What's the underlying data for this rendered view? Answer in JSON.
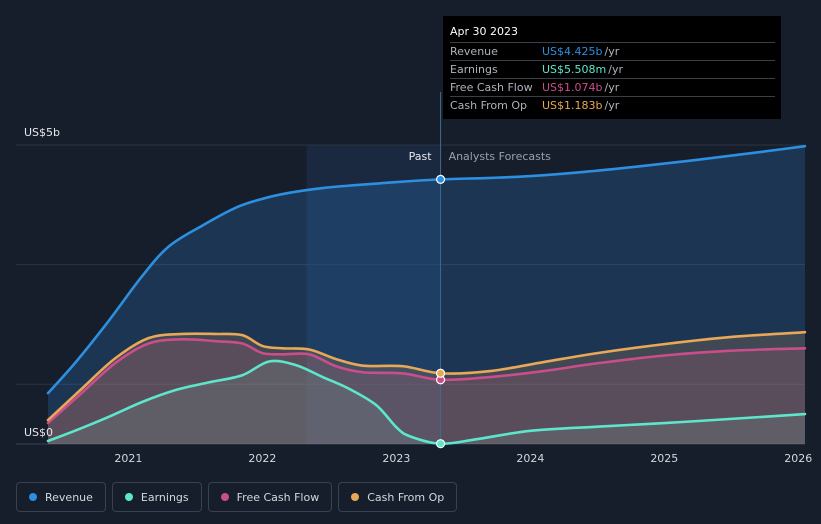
{
  "chart_data": {
    "type": "line",
    "y_top_label": "US$5b",
    "y_bottom_label": "US$0",
    "ylim": [
      0,
      5
    ],
    "xlim": [
      2020.4,
      2026.05
    ],
    "x_ticks": [
      {
        "value": 2021,
        "label": "2021"
      },
      {
        "value": 2022,
        "label": "2022"
      },
      {
        "value": 2023,
        "label": "2023"
      },
      {
        "value": 2024,
        "label": "2024"
      },
      {
        "value": 2025,
        "label": "2025"
      },
      {
        "value": 2026,
        "label": "2026"
      }
    ],
    "past_label": "Past",
    "forecast_label": "Analysts Forecasts",
    "past_region_start": 2022.33,
    "divider": 2023.33,
    "series": [
      {
        "name": "Revenue",
        "color": "#2d8fe0",
        "x": [
          2020.4,
          2020.6,
          2020.85,
          2021.1,
          2021.3,
          2021.55,
          2021.8,
          2022.0,
          2022.2,
          2022.45,
          2022.7,
          2023.0,
          2023.33,
          2023.7,
          2024.0,
          2024.4,
          2024.8,
          2025.2,
          2025.6,
          2026.05
        ],
        "y": [
          0.85,
          1.35,
          2.05,
          2.8,
          3.3,
          3.65,
          3.95,
          4.1,
          4.2,
          4.28,
          4.33,
          4.38,
          4.425,
          4.45,
          4.48,
          4.55,
          4.64,
          4.74,
          4.85,
          4.98
        ]
      },
      {
        "name": "Earnings",
        "color": "#5ee6cc",
        "x": [
          2020.4,
          2020.6,
          2020.85,
          2021.1,
          2021.35,
          2021.6,
          2021.85,
          2022.05,
          2022.25,
          2022.45,
          2022.65,
          2022.85,
          2023.0,
          2023.1,
          2023.33,
          2023.6,
          2024.0,
          2024.5,
          2025.0,
          2025.5,
          2026.05
        ],
        "y": [
          0.05,
          0.22,
          0.45,
          0.7,
          0.9,
          1.03,
          1.15,
          1.38,
          1.32,
          1.12,
          0.92,
          0.65,
          0.28,
          0.13,
          0.0055,
          0.08,
          0.22,
          0.29,
          0.35,
          0.42,
          0.5
        ]
      },
      {
        "name": "Free Cash Flow",
        "color": "#c94e8a",
        "x": [
          2020.4,
          2020.65,
          2020.9,
          2021.15,
          2021.4,
          2021.65,
          2021.85,
          2022.0,
          2022.15,
          2022.35,
          2022.55,
          2022.75,
          2023.05,
          2023.33,
          2023.7,
          2024.1,
          2024.5,
          2025.0,
          2025.5,
          2026.05
        ],
        "y": [
          0.35,
          0.85,
          1.35,
          1.68,
          1.75,
          1.72,
          1.68,
          1.52,
          1.5,
          1.5,
          1.3,
          1.2,
          1.18,
          1.074,
          1.12,
          1.22,
          1.35,
          1.48,
          1.56,
          1.6
        ]
      },
      {
        "name": "Cash From Op",
        "color": "#e8a858",
        "x": [
          2020.4,
          2020.65,
          2020.9,
          2021.15,
          2021.4,
          2021.65,
          2021.85,
          2022.0,
          2022.15,
          2022.35,
          2022.55,
          2022.75,
          2023.05,
          2023.33,
          2023.7,
          2024.1,
          2024.5,
          2025.0,
          2025.5,
          2026.05
        ],
        "y": [
          0.4,
          0.92,
          1.43,
          1.77,
          1.84,
          1.84,
          1.82,
          1.64,
          1.6,
          1.58,
          1.42,
          1.31,
          1.3,
          1.183,
          1.22,
          1.37,
          1.52,
          1.67,
          1.79,
          1.87
        ]
      }
    ],
    "tooltip": {
      "date": "Apr 30 2023",
      "rows": [
        {
          "label": "Revenue",
          "value": "US$4.425b",
          "unit": "/yr",
          "color": "#2d8fe0"
        },
        {
          "label": "Earnings",
          "value": "US$5.508m",
          "unit": "/yr",
          "color": "#5ee6cc"
        },
        {
          "label": "Free Cash Flow",
          "value": "US$1.074b",
          "unit": "/yr",
          "color": "#c94e8a"
        },
        {
          "label": "Cash From Op",
          "value": "US$1.183b",
          "unit": "/yr",
          "color": "#e8a858"
        }
      ]
    }
  },
  "legend": [
    {
      "label": "Revenue",
      "color": "#2d8fe0"
    },
    {
      "label": "Earnings",
      "color": "#5ee6cc"
    },
    {
      "label": "Free Cash Flow",
      "color": "#c94e8a"
    },
    {
      "label": "Cash From Op",
      "color": "#e8a858"
    }
  ]
}
